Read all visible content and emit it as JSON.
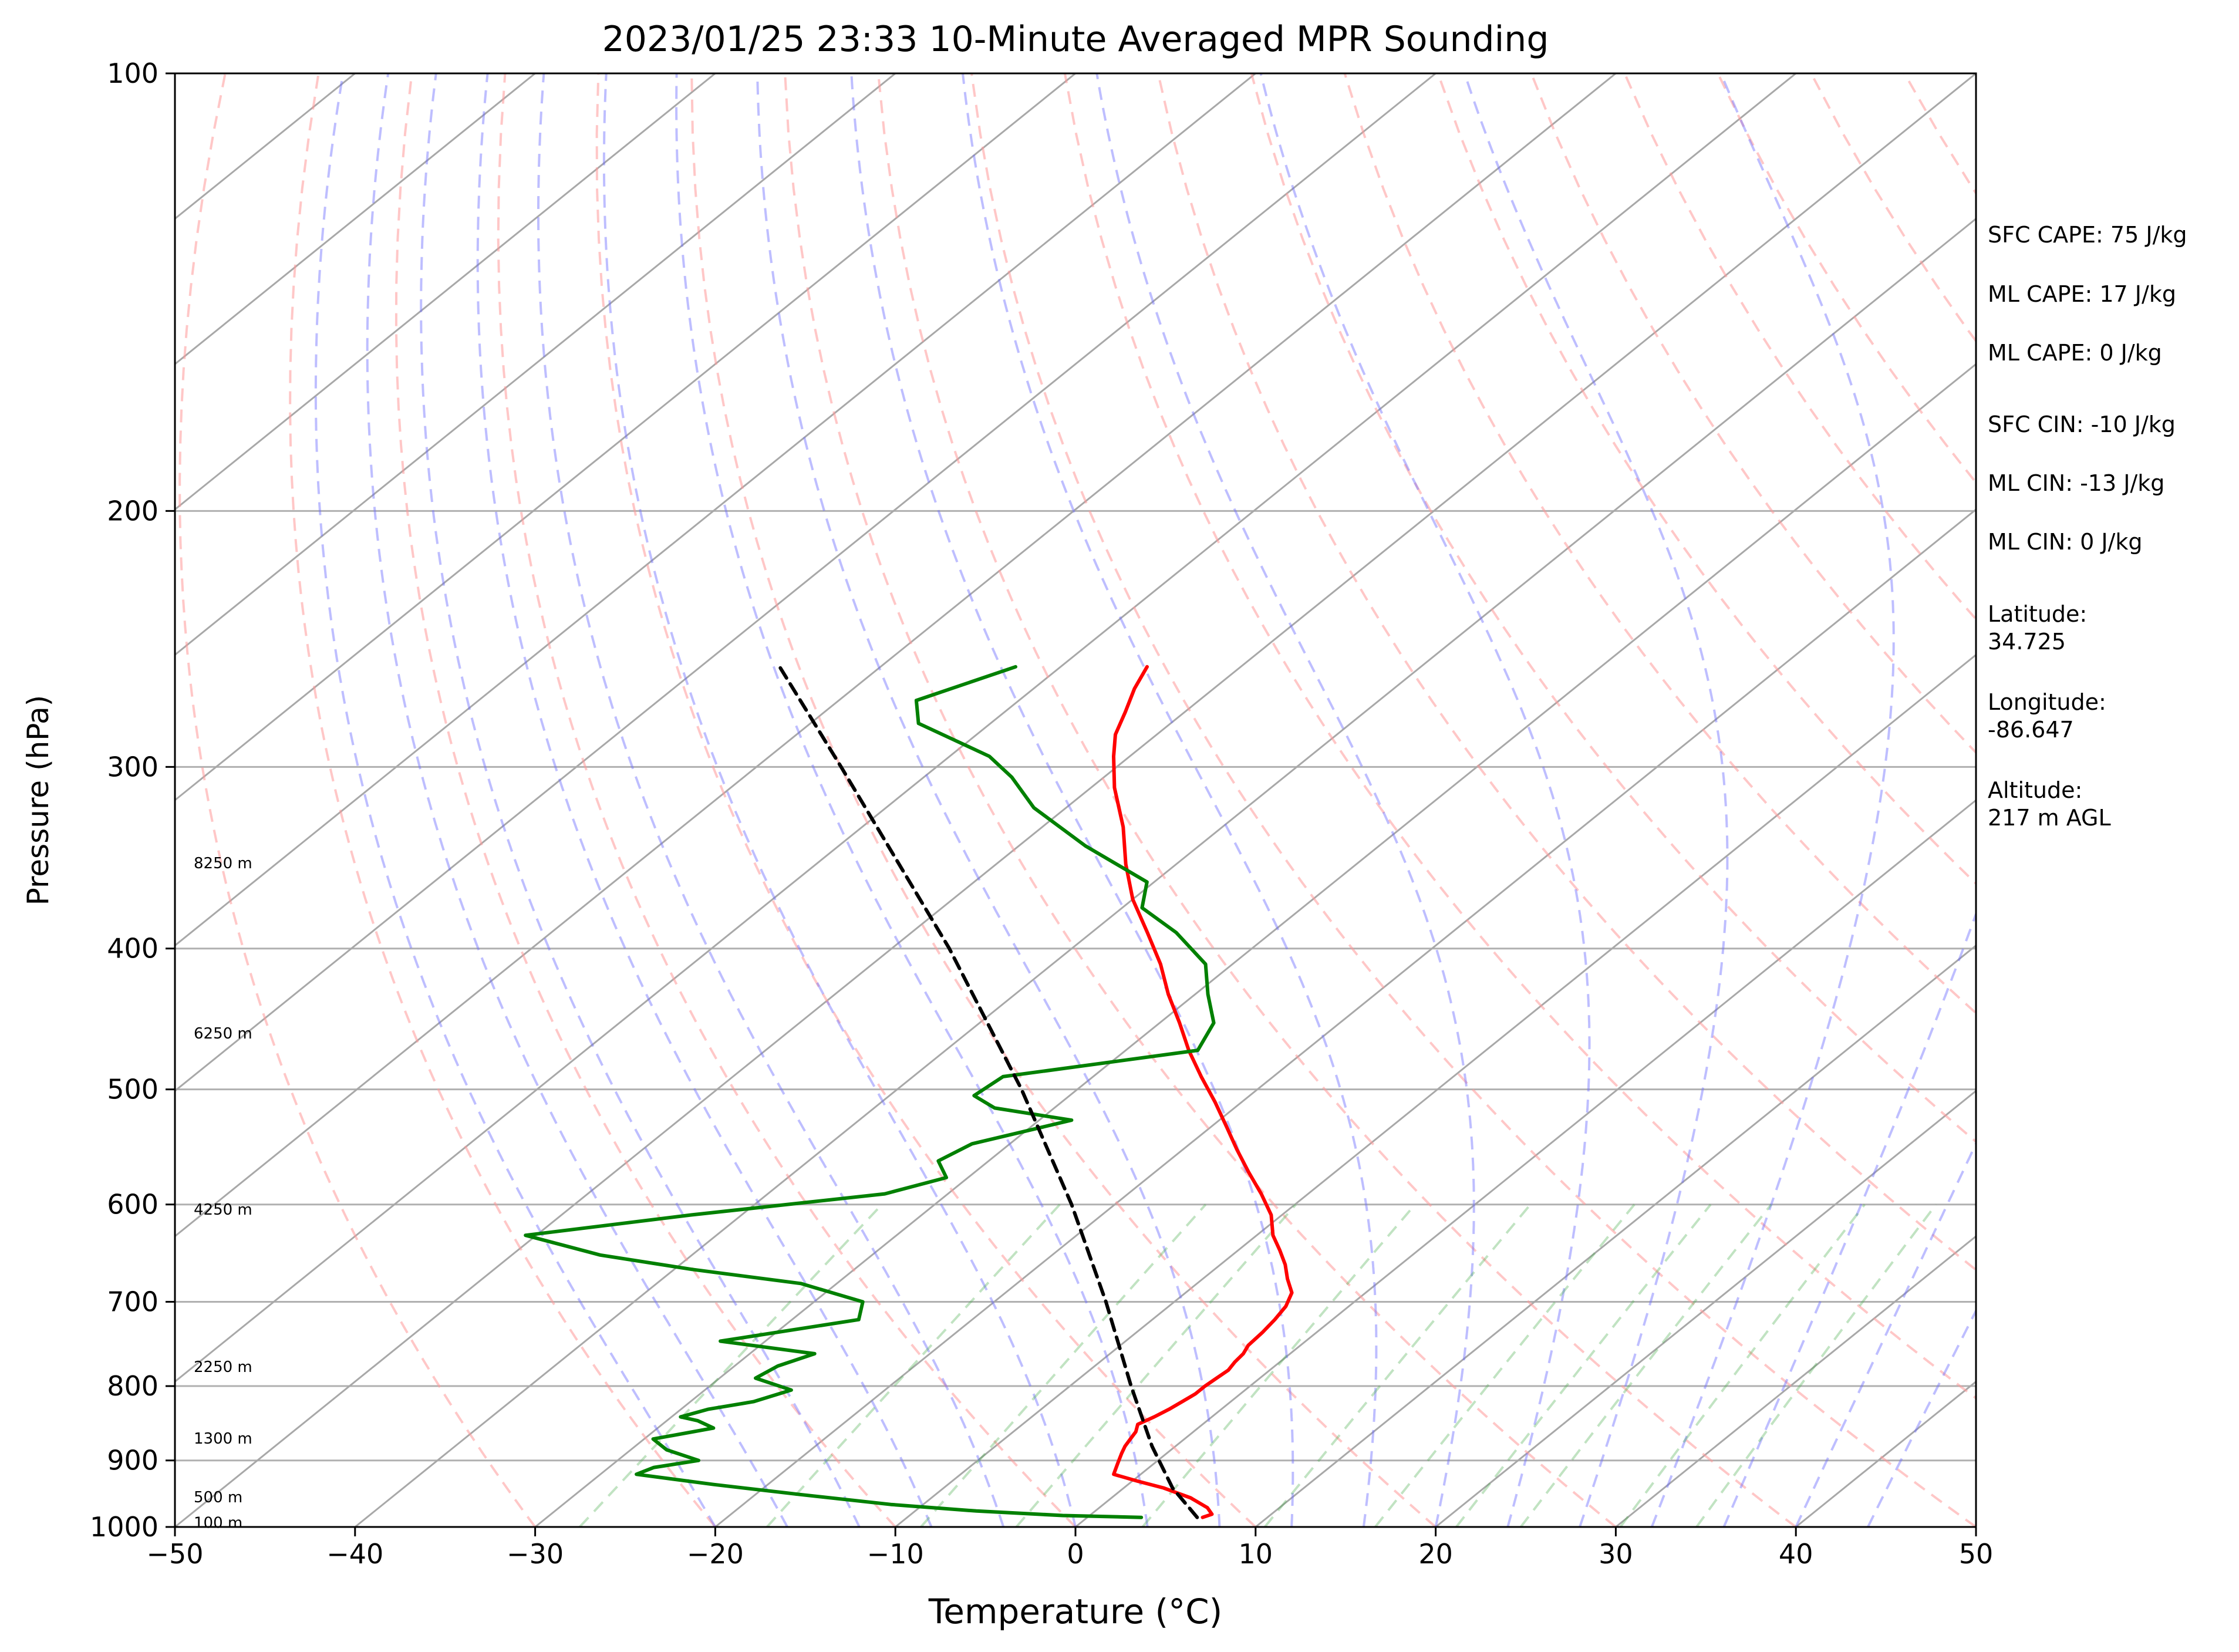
{
  "chart_data": {
    "type": "line",
    "title": "2023/01/25 23:33 10-Minute Averaged MPR Sounding",
    "xlabel": "Temperature (°C)",
    "ylabel": "Pressure (hPa)",
    "xlim": [
      -50,
      50
    ],
    "ylim": [
      1000,
      100
    ],
    "yscale": "log",
    "x_ticks": [
      "−50",
      "−40",
      "−30",
      "−20",
      "−10",
      "0",
      "10",
      "20",
      "30",
      "40",
      "50"
    ],
    "y_ticks": [
      "100",
      "200",
      "300",
      "400",
      "500",
      "600",
      "700",
      "800",
      "900",
      "1000"
    ],
    "grid": true,
    "skew": true,
    "height_labels": [
      "8250 m",
      "6250 m",
      "4250 m",
      "2250 m",
      "1300 m",
      "500 m",
      "100 m"
    ],
    "series": [
      {
        "color": "#ff0000",
        "pressure": [
          985,
          980,
          970,
          955,
          940,
          930,
          920,
          905,
          890,
          880,
          870,
          860,
          850,
          840,
          830,
          820,
          810,
          800,
          790,
          780,
          770,
          760,
          750,
          735,
          720,
          705,
          690,
          675,
          660,
          645,
          630,
          610,
          590,
          570,
          550,
          530,
          510,
          490,
          470,
          450,
          430,
          410,
          390,
          370,
          350,
          330,
          310,
          295,
          285,
          275,
          265,
          256
        ],
        "temperature": [
          6.4,
          6.7,
          6.0,
          4.4,
          2.2,
          0.3,
          -1.5,
          -2.0,
          -2.5,
          -2.8,
          -3.0,
          -3.2,
          -3.6,
          -3.2,
          -2.9,
          -2.7,
          -2.5,
          -2.5,
          -2.4,
          -2.3,
          -2.5,
          -2.6,
          -2.9,
          -3.0,
          -3.2,
          -3.5,
          -4.1,
          -5.3,
          -6.4,
          -7.7,
          -9.1,
          -10.6,
          -12.6,
          -14.8,
          -17.0,
          -19.2,
          -21.5,
          -24.0,
          -26.5,
          -28.9,
          -31.5,
          -34.0,
          -36.9,
          -40.0,
          -42.8,
          -45.5,
          -48.7,
          -50.9,
          -52.3,
          -53.3,
          -54.4,
          -55.2
        ]
      },
      {
        "color": "#008000",
        "pressure": [
          985,
          982,
          975,
          965,
          950,
          935,
          920,
          910,
          900,
          885,
          870,
          855,
          845,
          840,
          830,
          820,
          805,
          790,
          775,
          760,
          745,
          720,
          700,
          680,
          665,
          650,
          630,
          610,
          590,
          575,
          560,
          545,
          525,
          515,
          505,
          490,
          470,
          450,
          430,
          410,
          390,
          375,
          360,
          340,
          320,
          305,
          295,
          280,
          270,
          256
        ],
        "temperature": [
          3.0,
          -1.5,
          -6.6,
          -11.8,
          -17.5,
          -23.0,
          -28.0,
          -27.5,
          -25.5,
          -28.0,
          -29.5,
          -26.9,
          -28.3,
          -29.5,
          -28.5,
          -26.5,
          -25.2,
          -28.0,
          -27.6,
          -26.4,
          -32.5,
          -26.3,
          -27.3,
          -32.0,
          -39.0,
          -45.1,
          -50.6,
          -42.8,
          -33.5,
          -31.2,
          -32.8,
          -32.1,
          -28.2,
          -33.3,
          -35.3,
          -35.0,
          -26.0,
          -27.0,
          -29.3,
          -31.5,
          -35.3,
          -38.9,
          -40.4,
          -46.3,
          -51.8,
          -55.1,
          -57.8,
          -64.0,
          -65.7,
          -62.5
        ]
      },
      {
        "color": "#000000",
        "style": "dashed",
        "pressure": [
          985,
          940,
          880,
          800,
          700,
          600,
          500,
          400,
          300,
          256
        ],
        "temperature": [
          6.1,
          2.7,
          -1.3,
          -6.6,
          -13.8,
          -22.4,
          -33.1,
          -46.8,
          -65.3,
          -75.6
        ]
      }
    ],
    "annotations": [
      "SFC CAPE: 75 J/kg",
      "ML CAPE: 17 J/kg",
      "ML CAPE: 0 J/kg",
      "SFC CIN: -10 J/kg",
      "ML CIN: -13 J/kg",
      "ML CIN: 0 J/kg",
      "Latitude:",
      "34.725",
      "Longitude:",
      "-86.647",
      "Altitude:",
      "217 m AGL"
    ]
  }
}
